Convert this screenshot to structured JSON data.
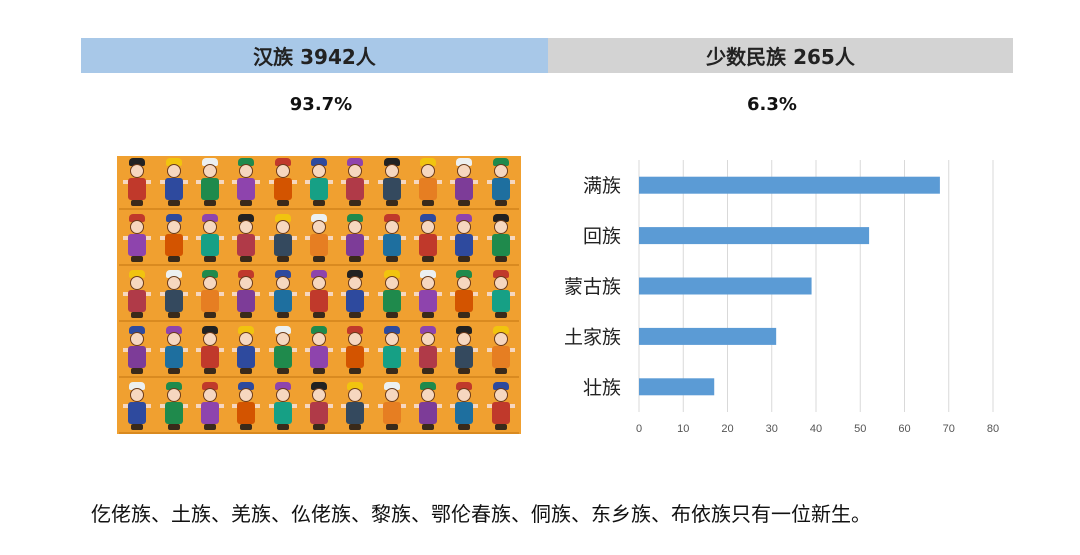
{
  "header": {
    "han_label": "汉族 3942人",
    "minority_label": "少数民族 265人"
  },
  "percent": {
    "han": "93.7%",
    "minority": "6.3%"
  },
  "colors": {
    "han_bar": "#a8c8e8",
    "minority_bar": "#d3d3d3",
    "chart_bar": "#5b9bd5",
    "mosaic_bg": "#f0a030"
  },
  "chart_data": {
    "type": "bar",
    "orientation": "horizontal",
    "categories": [
      "满族",
      "回族",
      "蒙古族",
      "土家族",
      "壮族"
    ],
    "values": [
      68,
      52,
      39,
      31,
      17
    ],
    "xlim": [
      0,
      80
    ],
    "xticks": [
      0,
      10,
      20,
      30,
      40,
      50,
      60,
      70,
      80
    ],
    "grid": true
  },
  "footnote": "仡佬族、土族、羌族、仫佬族、黎族、鄂伦春族、侗族、东乡族、布依族只有一位新生。"
}
